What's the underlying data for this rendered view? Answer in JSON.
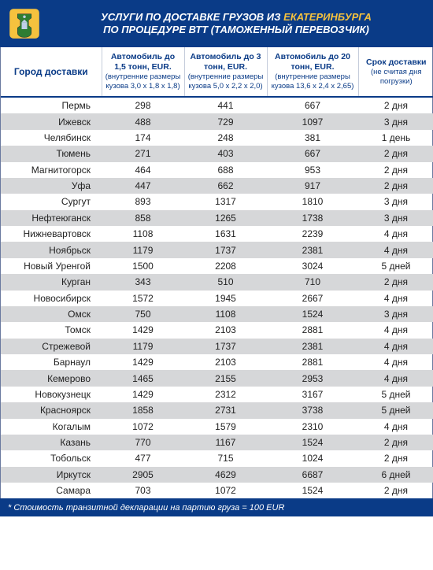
{
  "header": {
    "line1_prefix": "УСЛУГИ ПО ДОСТАВКЕ ГРУЗОВ ИЗ ",
    "line1_origin": "ЕКАТЕРИНБУРГА",
    "line2": "ПО ПРОЦЕДУРЕ ВТТ (ТАМОЖЕННЫЙ ПЕРЕВОЗЧИК)"
  },
  "columns": {
    "city": "Город доставки",
    "c1_top": "Автомобиль до 1,5 тонн, EUR.",
    "c1_sub": "(внутренние размеры кузова 3,0 х 1,8 х 1,8)",
    "c2_top": "Автомобиль до 3 тонн, EUR.",
    "c2_sub": "(внутренние размеры кузова 5,0 х 2,2 х 2,0)",
    "c3_top": "Автомобиль до 20 тонн, EUR.",
    "c3_sub": "(внутренние размеры кузова 13,6 х 2,4 х 2,65)",
    "c4_top": "Срок доставки",
    "c4_sub": "(не считая дня погрузки)"
  },
  "rows": [
    {
      "city": "Пермь",
      "v1": "298",
      "v2": "441",
      "v3": "667",
      "d": "2 дня"
    },
    {
      "city": "Ижевск",
      "v1": "488",
      "v2": "729",
      "v3": "1097",
      "d": "3 дня"
    },
    {
      "city": "Челябинск",
      "v1": "174",
      "v2": "248",
      "v3": "381",
      "d": "1 день"
    },
    {
      "city": "Тюмень",
      "v1": "271",
      "v2": "403",
      "v3": "667",
      "d": "2 дня"
    },
    {
      "city": "Магнитогорск",
      "v1": "464",
      "v2": "688",
      "v3": "953",
      "d": "2 дня"
    },
    {
      "city": "Уфа",
      "v1": "447",
      "v2": "662",
      "v3": "917",
      "d": "2 дня"
    },
    {
      "city": "Сургут",
      "v1": "893",
      "v2": "1317",
      "v3": "1810",
      "d": "3 дня"
    },
    {
      "city": "Нефтеюганск",
      "v1": "858",
      "v2": "1265",
      "v3": "1738",
      "d": "3 дня"
    },
    {
      "city": "Нижневартовск",
      "v1": "1108",
      "v2": "1631",
      "v3": "2239",
      "d": "4 дня"
    },
    {
      "city": "Ноябрьск",
      "v1": "1179",
      "v2": "1737",
      "v3": "2381",
      "d": "4 дня"
    },
    {
      "city": "Новый Уренгой",
      "v1": "1500",
      "v2": "2208",
      "v3": "3024",
      "d": "5 дней"
    },
    {
      "city": "Курган",
      "v1": "343",
      "v2": "510",
      "v3": "710",
      "d": "2 дня"
    },
    {
      "city": "Новосибирск",
      "v1": "1572",
      "v2": "1945",
      "v3": "2667",
      "d": "4 дня"
    },
    {
      "city": "Омск",
      "v1": "750",
      "v2": "1108",
      "v3": "1524",
      "d": "3 дня"
    },
    {
      "city": "Томск",
      "v1": "1429",
      "v2": "2103",
      "v3": "2881",
      "d": "4 дня"
    },
    {
      "city": "Стрежевой",
      "v1": "1179",
      "v2": "1737",
      "v3": "2381",
      "d": "4 дня"
    },
    {
      "city": "Барнаул",
      "v1": "1429",
      "v2": "2103",
      "v3": "2881",
      "d": "4 дня"
    },
    {
      "city": "Кемерово",
      "v1": "1465",
      "v2": "2155",
      "v3": "2953",
      "d": "4 дня"
    },
    {
      "city": "Новокузнецк",
      "v1": "1429",
      "v2": "2312",
      "v3": "3167",
      "d": "5 дней"
    },
    {
      "city": "Красноярск",
      "v1": "1858",
      "v2": "2731",
      "v3": "3738",
      "d": "5 дней"
    },
    {
      "city": "Когалым",
      "v1": "1072",
      "v2": "1579",
      "v3": "2310",
      "d": "4 дня"
    },
    {
      "city": "Казань",
      "v1": "770",
      "v2": "1167",
      "v3": "1524",
      "d": "2 дня"
    },
    {
      "city": "Тобольск",
      "v1": "477",
      "v2": "715",
      "v3": "1024",
      "d": "2 дня"
    },
    {
      "city": "Иркутск",
      "v1": "2905",
      "v2": "4629",
      "v3": "6687",
      "d": "6 дней"
    },
    {
      "city": "Самара",
      "v1": "703",
      "v2": "1072",
      "v3": "1524",
      "d": "2 дня"
    }
  ],
  "footnote": "* Стоимость транзитной декларации на партию груза = 100 EUR",
  "style": {
    "header_bg": "#0a3b87",
    "header_fg": "#ffffff",
    "accent_yellow": "#f5c23e",
    "row_alt_bg": "#d6d7d9",
    "border_color": "#6b7aa0",
    "th_color": "#0a3b87",
    "body_font_size_pt": 9,
    "header_font_size_pt": 10
  }
}
